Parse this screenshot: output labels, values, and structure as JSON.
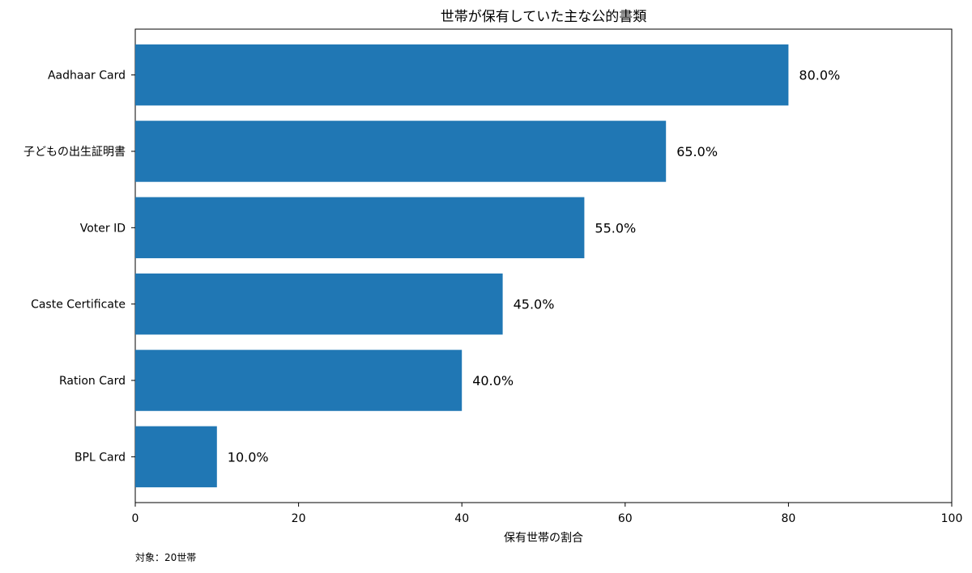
{
  "chart_data": {
    "type": "bar",
    "orientation": "horizontal",
    "title": "世帯が保有していた主な公的書類",
    "categories": [
      "Aadhaar Card",
      "子どもの出生証明書",
      "Voter ID",
      "Caste Certificate",
      "Ration Card",
      "BPL Card"
    ],
    "values": [
      80.0,
      65.0,
      55.0,
      45.0,
      40.0,
      10.0
    ],
    "value_labels": [
      "80.0%",
      "65.0%",
      "55.0%",
      "45.0%",
      "40.0%",
      "10.0%"
    ],
    "xlabel": "保有世帯の割合",
    "ylabel": "",
    "xlim": [
      0,
      100
    ],
    "xticks": [
      0,
      20,
      40,
      60,
      80,
      100
    ],
    "xtick_labels": [
      "0",
      "20",
      "40",
      "60",
      "80",
      "100"
    ],
    "bar_color": "#2077b4",
    "grid": false,
    "footnote": "対象：20世帯"
  }
}
